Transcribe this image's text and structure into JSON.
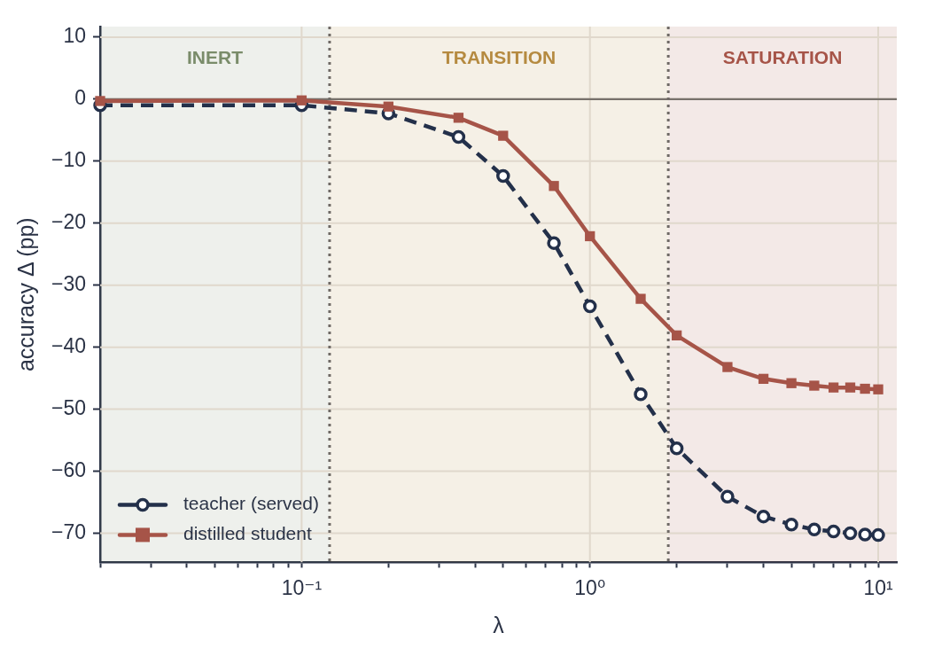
{
  "chart_data": {
    "type": "line",
    "xlabel": "λ",
    "ylabel": "accuracy Δ (pp)",
    "log": "x",
    "grid": true,
    "legend": "bottom left",
    "xlim": [
      0.02,
      11.6
    ],
    "ylim": [
      -74.7,
      11.7
    ],
    "xticks": [
      {
        "value": 0.02,
        "label": null
      },
      {
        "value": 0.03,
        "label": null
      },
      {
        "value": 0.04,
        "label": null
      },
      {
        "value": 0.05,
        "label": null
      },
      {
        "value": 0.06,
        "label": null
      },
      {
        "value": 0.07,
        "label": null
      },
      {
        "value": 0.08,
        "label": null
      },
      {
        "value": 0.09,
        "label": null
      },
      {
        "value": 0.1,
        "label": "10⁻¹"
      },
      {
        "value": 0.2,
        "label": null
      },
      {
        "value": 0.3,
        "label": null
      },
      {
        "value": 0.4,
        "label": null
      },
      {
        "value": 0.5,
        "label": null
      },
      {
        "value": 0.6,
        "label": null
      },
      {
        "value": 0.7,
        "label": null
      },
      {
        "value": 0.8,
        "label": null
      },
      {
        "value": 0.9,
        "label": null
      },
      {
        "value": 1,
        "label": "10⁰"
      },
      {
        "value": 2,
        "label": null
      },
      {
        "value": 3,
        "label": null
      },
      {
        "value": 4,
        "label": null
      },
      {
        "value": 5,
        "label": null
      },
      {
        "value": 6,
        "label": null
      },
      {
        "value": 7,
        "label": null
      },
      {
        "value": 8,
        "label": null
      },
      {
        "value": 9,
        "label": null
      },
      {
        "value": 10,
        "label": "10¹"
      }
    ],
    "yticks": [
      10,
      0,
      -10,
      -20,
      -30,
      -40,
      -50,
      -60,
      -70
    ],
    "x": [
      0.02,
      0.1,
      0.2,
      0.35,
      0.5,
      0.75,
      1,
      1.5,
      2,
      3,
      4,
      5,
      6,
      7,
      8,
      9,
      10
    ],
    "series": [
      {
        "name": "teacher (served)",
        "color": "#23304a",
        "marker": "circle",
        "line_style": "dashed",
        "values": [
          -1,
          -1,
          -2.3,
          -6.1,
          -12.4,
          -23.2,
          -33.4,
          -47.6,
          -56.3,
          -64.1,
          -67.3,
          -68.6,
          -69.4,
          -69.7,
          -70,
          -70.2,
          -70.3
        ]
      },
      {
        "name": "distilled student",
        "color": "#a65448",
        "marker": "square",
        "line_style": "solid",
        "values": [
          -0.3,
          -0.2,
          -1.2,
          -3,
          -5.9,
          -14,
          -22.1,
          -32.2,
          -38.1,
          -43.2,
          -45.1,
          -45.8,
          -46.2,
          -46.5,
          -46.5,
          -46.7,
          -46.8
        ]
      }
    ],
    "bands": [
      {
        "axis": "x",
        "from": 0.02,
        "to": 0.125,
        "label": "INERT",
        "color": "#7a8c6a"
      },
      {
        "axis": "x",
        "from": 0.125,
        "to": 1.87,
        "label": "TRANSITION",
        "color": "#b58a40"
      },
      {
        "axis": "x",
        "from": 1.87,
        "to": 11.6,
        "label": "SATURATION",
        "color": "#a65448"
      }
    ],
    "ref_lines": [
      {
        "axis": "y",
        "value": 0,
        "color": "#77716b",
        "line_style": "solid"
      },
      {
        "axis": "x",
        "value": 0.125,
        "color": "#6f6a66",
        "line_style": "dotted"
      },
      {
        "axis": "x",
        "value": 1.87,
        "color": "#6f6a66",
        "line_style": "dotted"
      }
    ]
  }
}
